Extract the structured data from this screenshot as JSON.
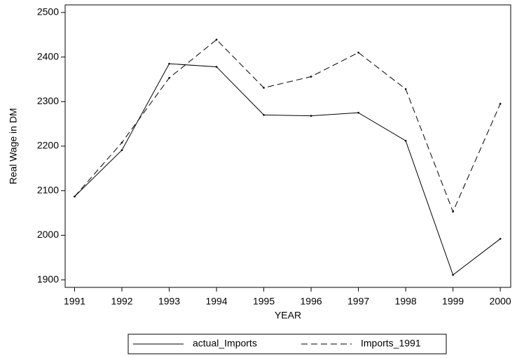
{
  "chart_data": {
    "type": "line",
    "x_label": "YEAR",
    "y_label": "Real Wage in DM",
    "x": [
      1991,
      1992,
      1993,
      1994,
      1995,
      1996,
      1997,
      1998,
      1999,
      2000
    ],
    "series": [
      {
        "name": "actual_Imports",
        "color": "#000000",
        "line_style": "solid",
        "values": [
          2087,
          2191,
          2385,
          2378,
          2270,
          2268,
          2275,
          2212,
          1911,
          1992
        ]
      },
      {
        "name": "Imports_1991",
        "color": "#000000",
        "line_style": "dashed",
        "values": [
          2087,
          2208,
          2353,
          2439,
          2331,
          2356,
          2410,
          2328,
          2053,
          2295
        ]
      }
    ],
    "xlim": [
      1990.8,
      2000.22
    ],
    "ylim": [
      1883,
      2517
    ],
    "xticks": [
      1991,
      1992,
      1993,
      1994,
      1995,
      1996,
      1997,
      1998,
      1999,
      2000
    ],
    "yticks": [
      1900,
      2000,
      2100,
      2200,
      2300,
      2400,
      2500
    ],
    "grid": false,
    "legend": "bottom"
  }
}
